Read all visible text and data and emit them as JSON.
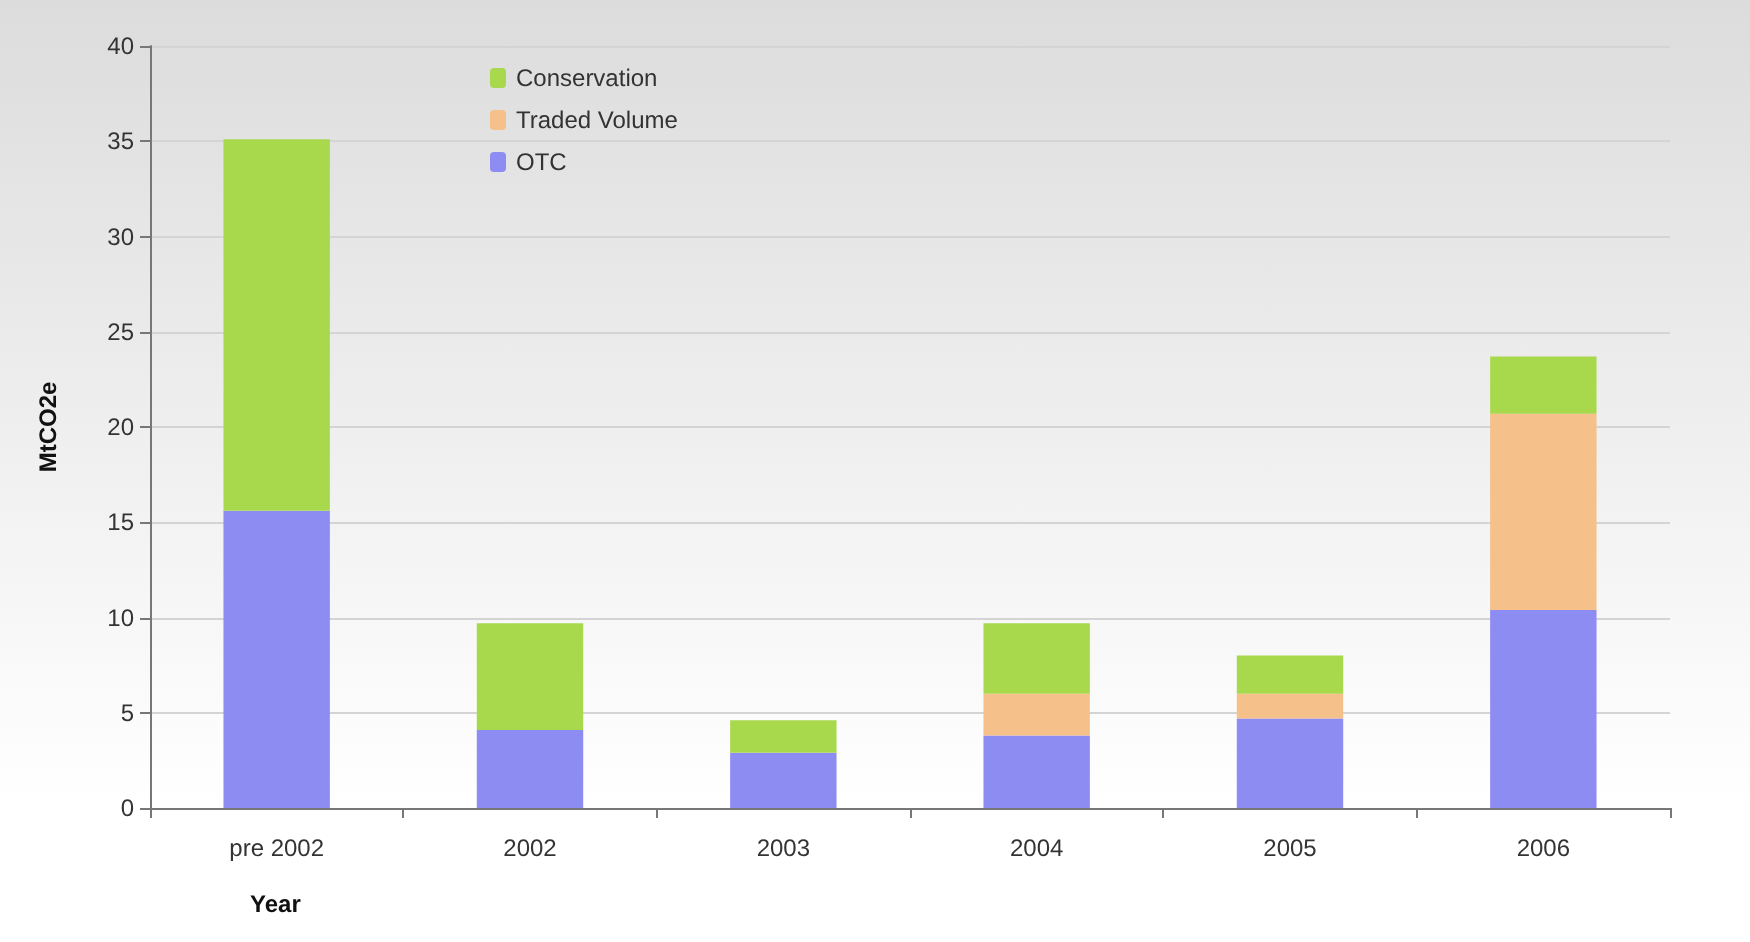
{
  "chart_data": {
    "type": "bar",
    "xlabel": "Year",
    "ylabel": "MtCO2e",
    "categories": [
      "pre 2002",
      "2002",
      "2003",
      "2004",
      "2005",
      "2006"
    ],
    "stacked": true,
    "series": [
      {
        "name": "OTC",
        "color": "#8c8cf2",
        "values": [
          15.6,
          4.1,
          2.9,
          3.8,
          4.7,
          10.4
        ]
      },
      {
        "name": "Traded Volume",
        "color": "#f5c08a",
        "values": [
          0,
          0,
          0,
          2.2,
          1.3,
          10.3
        ]
      },
      {
        "name": "Conservation",
        "color": "#a8d84c",
        "values": [
          19.5,
          5.6,
          1.7,
          3.7,
          2.0,
          3.0
        ]
      }
    ],
    "ylim": [
      0,
      40
    ],
    "yticks": [
      0,
      5,
      10,
      15,
      20,
      25,
      30,
      35,
      40
    ],
    "grid": "y",
    "legend": "top"
  }
}
